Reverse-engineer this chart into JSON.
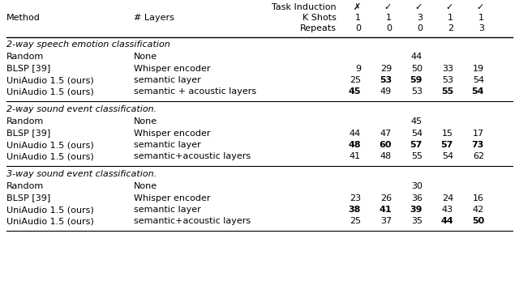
{
  "header_row1_label": "Task Induction",
  "header_row2_label": "K Shots",
  "header_row3_label": "Repeats",
  "header_symbols": [
    "✗",
    "✓",
    "✓",
    "✓",
    "✓"
  ],
  "header_kshots": [
    "1",
    "1",
    "3",
    "1",
    "1"
  ],
  "header_repeats": [
    "0",
    "0",
    "0",
    "2",
    "3"
  ],
  "section1_title": "2-way speech emotion classification",
  "section1_rows": [
    [
      "Random",
      "None",
      "",
      "",
      "44",
      "",
      ""
    ],
    [
      "BLSP [39]",
      "Whisper encoder",
      "9",
      "29",
      "50",
      "33",
      "19"
    ],
    [
      "UniAudio 1.5 (ours)",
      "semantic layer",
      "25",
      "53",
      "59",
      "53",
      "54"
    ],
    [
      "UniAudio 1.5 (ours)",
      "semantic + acoustic layers",
      "45",
      "49",
      "53",
      "55",
      "54"
    ]
  ],
  "section1_bold": [
    [
      false,
      false,
      false,
      false,
      false,
      false,
      false
    ],
    [
      false,
      false,
      false,
      false,
      false,
      false,
      false
    ],
    [
      false,
      false,
      false,
      true,
      true,
      false,
      false
    ],
    [
      false,
      false,
      true,
      false,
      false,
      true,
      true
    ]
  ],
  "section2_title": "2-way sound event classification.",
  "section2_rows": [
    [
      "Random",
      "None",
      "",
      "",
      "45",
      "",
      ""
    ],
    [
      "BLSP [39]",
      "Whisper encoder",
      "44",
      "47",
      "54",
      "15",
      "17"
    ],
    [
      "UniAudio 1.5 (ours)",
      "semantic layer",
      "48",
      "60",
      "57",
      "57",
      "73"
    ],
    [
      "UniAudio 1.5 (ours)",
      "semantic+acoustic layers",
      "41",
      "48",
      "55",
      "54",
      "62"
    ]
  ],
  "section2_bold": [
    [
      false,
      false,
      false,
      false,
      false,
      false,
      false
    ],
    [
      false,
      false,
      false,
      false,
      false,
      false,
      false
    ],
    [
      false,
      false,
      true,
      true,
      true,
      true,
      true
    ],
    [
      false,
      false,
      false,
      false,
      false,
      false,
      false
    ]
  ],
  "section3_title": "3-way sound event classification.",
  "section3_rows": [
    [
      "Random",
      "None",
      "",
      "",
      "30",
      "",
      ""
    ],
    [
      "BLSP [39]",
      "Whisper encoder",
      "23",
      "26",
      "36",
      "24",
      "16"
    ],
    [
      "UniAudio 1.5 (ours)",
      "semantic layer",
      "38",
      "41",
      "39",
      "43",
      "42"
    ],
    [
      "UniAudio 1.5 (ours)",
      "semantic+acoustic layers",
      "25",
      "37",
      "35",
      "44",
      "50"
    ]
  ],
  "section3_bold": [
    [
      false,
      false,
      false,
      false,
      false,
      false,
      false
    ],
    [
      false,
      false,
      false,
      false,
      false,
      false,
      false
    ],
    [
      false,
      false,
      true,
      true,
      true,
      false,
      false
    ],
    [
      false,
      false,
      false,
      false,
      false,
      true,
      true
    ]
  ],
  "font_size": 8.0,
  "bg_color": "#ffffff",
  "text_color": "#000000",
  "line_color": "#000000"
}
